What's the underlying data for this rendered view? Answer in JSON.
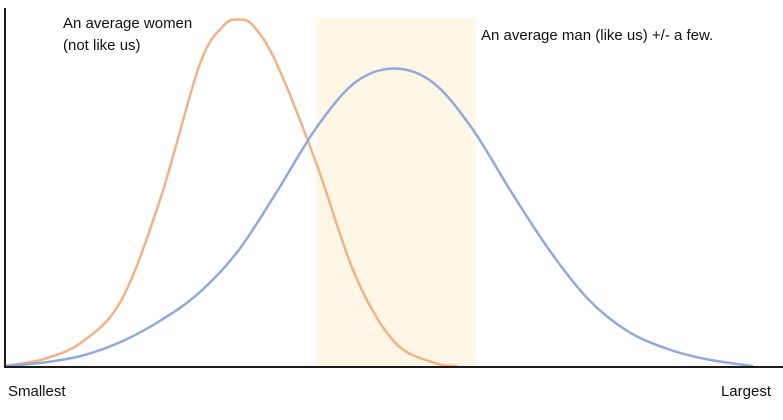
{
  "chart_data": {
    "type": "area",
    "title": "",
    "xlabel": "",
    "ylabel": "",
    "x_range": [
      0,
      1
    ],
    "y_range": [
      0,
      1
    ],
    "x_tick_labels": [
      "Smallest",
      "Largest"
    ],
    "grid": false,
    "legend": "none",
    "highlight_band": {
      "x_start": 0.4,
      "x_end": 0.605,
      "color": "#fff6e5"
    },
    "series": [
      {
        "color": "#f4b183",
        "peak_x": 0.3,
        "peak_y": 0.99,
        "x": [
          0.0,
          0.05,
          0.1,
          0.15,
          0.2,
          0.25,
          0.28,
          0.3,
          0.32,
          0.35,
          0.4,
          0.45,
          0.5,
          0.55,
          0.58
        ],
        "y": [
          0.0,
          0.02,
          0.07,
          0.19,
          0.48,
          0.86,
          0.97,
          0.99,
          0.97,
          0.86,
          0.58,
          0.26,
          0.07,
          0.01,
          0.0
        ],
        "annotation": [
          "An average women",
          "(not like us)"
        ]
      },
      {
        "color": "#8faadc",
        "peak_x": 0.5,
        "peak_y": 0.85,
        "x": [
          0.0,
          0.05,
          0.1,
          0.15,
          0.2,
          0.25,
          0.3,
          0.35,
          0.4,
          0.45,
          0.5,
          0.55,
          0.6,
          0.65,
          0.7,
          0.75,
          0.8,
          0.85,
          0.9,
          0.96
        ],
        "y": [
          0.0,
          0.01,
          0.03,
          0.07,
          0.13,
          0.21,
          0.33,
          0.5,
          0.68,
          0.81,
          0.85,
          0.81,
          0.68,
          0.5,
          0.33,
          0.19,
          0.1,
          0.05,
          0.02,
          0.0
        ],
        "annotation": [
          "An average man (like us) +/- a few."
        ]
      }
    ]
  }
}
